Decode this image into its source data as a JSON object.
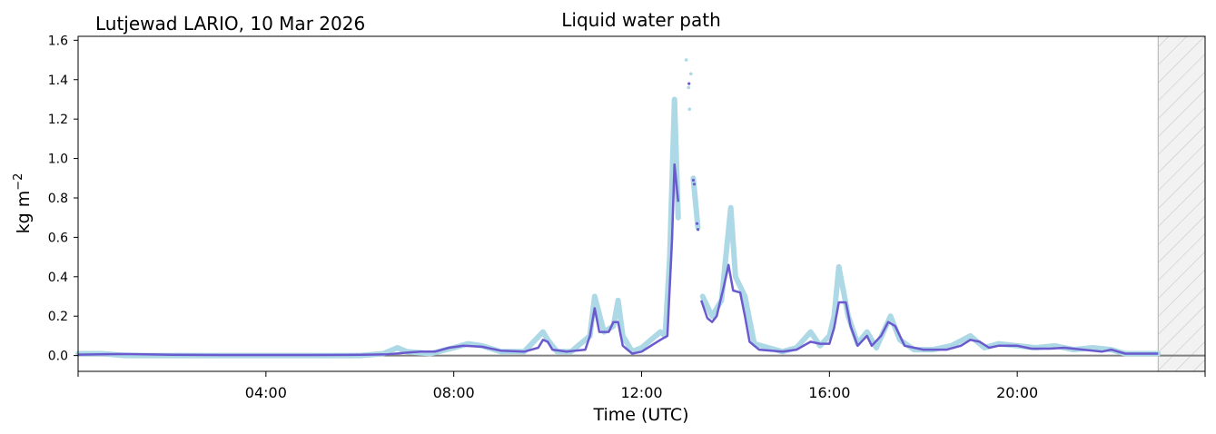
{
  "figure": {
    "site_title": "Lutjewad LARIO, 10 Mar 2026",
    "title": "Liquid water path"
  },
  "colors": {
    "raw": "#add8e6",
    "smoothed": "#6a5acd",
    "zero_line": "#808080",
    "missing_hatch": "#c8c8c8",
    "missing_fill": "#f2f2f2"
  },
  "chart_data": {
    "type": "line",
    "title": "Liquid water path",
    "xlabel": "Time (UTC)",
    "ylabel_base": "kg m",
    "ylabel_exp": "−2",
    "x_unit": "hours UTC",
    "xlim": [
      0,
      24
    ],
    "ylim": [
      -0.08,
      1.62
    ],
    "x_tick_values": [
      4,
      8,
      12,
      16,
      20
    ],
    "x_tick_labels": [
      "04:00",
      "08:00",
      "12:00",
      "16:00",
      "20:00"
    ],
    "y_tick_values": [
      0.0,
      0.2,
      0.4,
      0.6,
      0.8,
      1.0,
      1.2,
      1.4,
      1.6
    ],
    "y_tick_labels": [
      "0.0",
      "0.2",
      "0.4",
      "0.6",
      "0.8",
      "1.0",
      "1.2",
      "1.4",
      "1.6"
    ],
    "grid": false,
    "missing_data_range": [
      23.0,
      24.0
    ],
    "series": [
      {
        "style": "raw-points",
        "segments": [
          [
            [
              0.0,
              0.01
            ],
            [
              0.5,
              0.01
            ],
            [
              1.0,
              0.0
            ],
            [
              1.5,
              0.0
            ],
            [
              2.0,
              0.0
            ],
            [
              2.5,
              0.0
            ],
            [
              3.0,
              0.0
            ],
            [
              3.5,
              0.0
            ],
            [
              4.0,
              0.0
            ],
            [
              4.5,
              0.0
            ],
            [
              5.0,
              0.0
            ],
            [
              5.5,
              0.0
            ],
            [
              6.0,
              0.0
            ],
            [
              6.5,
              0.01
            ],
            [
              6.8,
              0.04
            ],
            [
              7.0,
              0.02
            ],
            [
              7.5,
              0.01
            ],
            [
              8.0,
              0.04
            ],
            [
              8.3,
              0.06
            ],
            [
              8.6,
              0.05
            ],
            [
              9.0,
              0.02
            ],
            [
              9.5,
              0.02
            ],
            [
              9.9,
              0.12
            ],
            [
              10.0,
              0.08
            ],
            [
              10.2,
              0.02
            ],
            [
              10.5,
              0.02
            ],
            [
              10.9,
              0.1
            ],
            [
              11.0,
              0.3
            ],
            [
              11.2,
              0.12
            ],
            [
              11.4,
              0.15
            ],
            [
              11.5,
              0.28
            ],
            [
              11.6,
              0.1
            ],
            [
              11.8,
              0.02
            ],
            [
              12.0,
              0.04
            ],
            [
              12.2,
              0.08
            ],
            [
              12.4,
              0.12
            ],
            [
              12.5,
              0.1
            ],
            [
              12.6,
              0.5
            ],
            [
              12.7,
              1.3
            ],
            [
              12.78,
              0.7
            ]
          ],
          [
            [
              13.1,
              0.9
            ],
            [
              13.2,
              0.65
            ]
          ],
          [
            [
              13.3,
              0.3
            ],
            [
              13.5,
              0.2
            ],
            [
              13.7,
              0.28
            ],
            [
              13.9,
              0.75
            ],
            [
              14.0,
              0.4
            ],
            [
              14.2,
              0.3
            ],
            [
              14.4,
              0.06
            ],
            [
              14.7,
              0.04
            ],
            [
              15.0,
              0.02
            ],
            [
              15.3,
              0.04
            ],
            [
              15.6,
              0.12
            ],
            [
              15.8,
              0.05
            ],
            [
              16.0,
              0.1
            ],
            [
              16.1,
              0.2
            ],
            [
              16.2,
              0.45
            ],
            [
              16.4,
              0.2
            ],
            [
              16.6,
              0.06
            ],
            [
              16.8,
              0.12
            ],
            [
              17.0,
              0.04
            ],
            [
              17.3,
              0.2
            ],
            [
              17.5,
              0.08
            ],
            [
              17.8,
              0.03
            ],
            [
              18.2,
              0.03
            ],
            [
              18.6,
              0.05
            ],
            [
              19.0,
              0.1
            ],
            [
              19.3,
              0.04
            ],
            [
              19.6,
              0.06
            ],
            [
              20.0,
              0.05
            ],
            [
              20.4,
              0.04
            ],
            [
              20.8,
              0.05
            ],
            [
              21.2,
              0.03
            ],
            [
              21.6,
              0.04
            ],
            [
              22.0,
              0.03
            ],
            [
              22.3,
              0.01
            ],
            [
              22.6,
              0.01
            ],
            [
              23.0,
              0.01
            ]
          ]
        ],
        "isolated_points": [
          [
            12.95,
            1.5
          ],
          [
            13.0,
            1.36
          ],
          [
            13.02,
            1.25
          ],
          [
            13.05,
            1.43
          ]
        ]
      },
      {
        "style": "smoothed-line",
        "segments": [
          [
            [
              0.0,
              0.005
            ],
            [
              1.0,
              0.008
            ],
            [
              2.0,
              0.004
            ],
            [
              3.0,
              0.003
            ],
            [
              4.0,
              0.003
            ],
            [
              5.0,
              0.003
            ],
            [
              6.0,
              0.004
            ],
            [
              6.6,
              0.006
            ],
            [
              7.0,
              0.015
            ],
            [
              7.3,
              0.02
            ],
            [
              7.6,
              0.02
            ],
            [
              7.9,
              0.04
            ],
            [
              8.2,
              0.05
            ],
            [
              8.6,
              0.045
            ],
            [
              9.0,
              0.025
            ],
            [
              9.5,
              0.02
            ],
            [
              9.8,
              0.04
            ],
            [
              9.9,
              0.08
            ],
            [
              10.0,
              0.07
            ],
            [
              10.1,
              0.03
            ],
            [
              10.4,
              0.02
            ],
            [
              10.8,
              0.03
            ],
            [
              10.9,
              0.1
            ],
            [
              11.0,
              0.24
            ],
            [
              11.1,
              0.12
            ],
            [
              11.3,
              0.12
            ],
            [
              11.4,
              0.17
            ],
            [
              11.5,
              0.17
            ],
            [
              11.6,
              0.05
            ],
            [
              11.8,
              0.01
            ],
            [
              12.0,
              0.02
            ],
            [
              12.2,
              0.05
            ],
            [
              12.4,
              0.08
            ],
            [
              12.55,
              0.1
            ],
            [
              12.65,
              0.6
            ],
            [
              12.7,
              0.97
            ],
            [
              12.78,
              0.78
            ]
          ],
          [
            [
              13.27,
              0.28
            ],
            [
              13.4,
              0.19
            ],
            [
              13.5,
              0.17
            ],
            [
              13.6,
              0.2
            ],
            [
              13.75,
              0.35
            ],
            [
              13.85,
              0.46
            ],
            [
              13.95,
              0.33
            ],
            [
              14.1,
              0.32
            ],
            [
              14.2,
              0.2
            ],
            [
              14.3,
              0.07
            ],
            [
              14.5,
              0.03
            ],
            [
              15.0,
              0.02
            ],
            [
              15.3,
              0.03
            ],
            [
              15.6,
              0.07
            ],
            [
              15.8,
              0.06
            ],
            [
              16.0,
              0.06
            ],
            [
              16.1,
              0.14
            ],
            [
              16.2,
              0.27
            ],
            [
              16.35,
              0.27
            ],
            [
              16.45,
              0.15
            ],
            [
              16.6,
              0.05
            ],
            [
              16.8,
              0.1
            ],
            [
              16.9,
              0.05
            ],
            [
              17.1,
              0.1
            ],
            [
              17.25,
              0.17
            ],
            [
              17.4,
              0.15
            ],
            [
              17.6,
              0.05
            ],
            [
              18.0,
              0.03
            ],
            [
              18.5,
              0.03
            ],
            [
              18.8,
              0.05
            ],
            [
              19.0,
              0.08
            ],
            [
              19.2,
              0.07
            ],
            [
              19.4,
              0.04
            ],
            [
              19.6,
              0.05
            ],
            [
              20.0,
              0.05
            ],
            [
              20.3,
              0.035
            ],
            [
              20.7,
              0.035
            ],
            [
              21.0,
              0.04
            ],
            [
              21.4,
              0.03
            ],
            [
              21.8,
              0.02
            ],
            [
              22.0,
              0.03
            ],
            [
              22.3,
              0.01
            ],
            [
              22.8,
              0.01
            ],
            [
              23.0,
              0.01
            ]
          ]
        ],
        "isolated_points": [
          [
            13.1,
            0.89
          ],
          [
            13.12,
            0.87
          ],
          [
            13.18,
            0.67
          ],
          [
            13.2,
            0.64
          ],
          [
            13.01,
            1.38
          ]
        ]
      }
    ]
  }
}
